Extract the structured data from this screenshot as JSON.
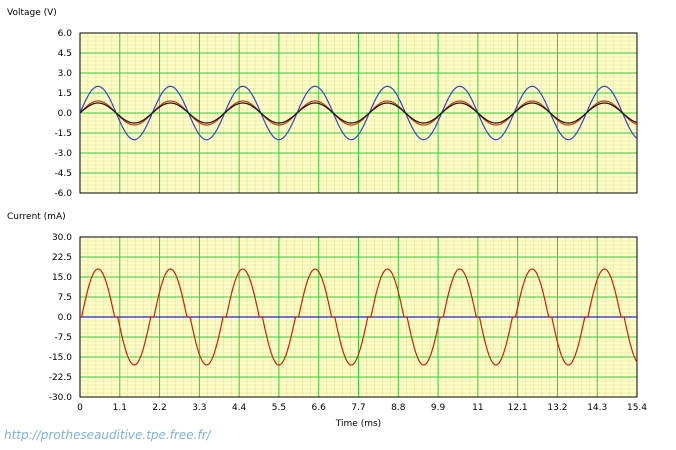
{
  "chart_data": [
    {
      "type": "line",
      "ylabel": "Voltage (V)",
      "xlim": [
        0,
        15.4
      ],
      "ylim": [
        -6.0,
        6.0
      ],
      "y_ticks": [
        "6.0",
        "4.5",
        "3.0",
        "1.5",
        "0.0",
        "-1.5",
        "-3.0",
        "-4.5",
        "-6.0"
      ],
      "grid": true,
      "background_color": "#ffffcc",
      "grid_major_color": "#33cc33",
      "grid_minor_color": "#dddd88",
      "period_ms": 2.0,
      "series": [
        {
          "color": "#3344cc",
          "amplitude": 2.0,
          "phase_ms": 0.0
        },
        {
          "color": "#cc3300",
          "amplitude": 0.9,
          "phase_ms": 0.0
        },
        {
          "color": "#111111",
          "amplitude": 0.75,
          "phase_ms": 0.0
        }
      ]
    },
    {
      "type": "line",
      "ylabel": "Current (mA)",
      "xlabel": "Time (ms)",
      "xlim": [
        0,
        15.4
      ],
      "ylim": [
        -30.0,
        30.0
      ],
      "x_ticks": [
        "0",
        "1.1",
        "2.2",
        "3.3",
        "4.4",
        "5.5",
        "6.6",
        "7.7",
        "8.8",
        "9.9",
        "11",
        "12.1",
        "13.2",
        "14.3",
        "15.4"
      ],
      "y_ticks": [
        "30.0",
        "22.5",
        "15.0",
        "7.5",
        "0.0",
        "-7.5",
        "-15.0",
        "-22.5",
        "-30.0"
      ],
      "grid": true,
      "background_color": "#ffffcc",
      "grid_major_color": "#33cc33",
      "grid_minor_color": "#dddd88",
      "period_ms": 2.0,
      "series": [
        {
          "color": "#2222cc",
          "amplitude": 0.0,
          "phase_ms": 0.0
        },
        {
          "color": "#cc2200",
          "amplitude": 18.0,
          "phase_ms": 0.0,
          "dead_zone": 2.5
        }
      ]
    }
  ],
  "watermark": "http://protheseauditive.tpe.free.fr/"
}
